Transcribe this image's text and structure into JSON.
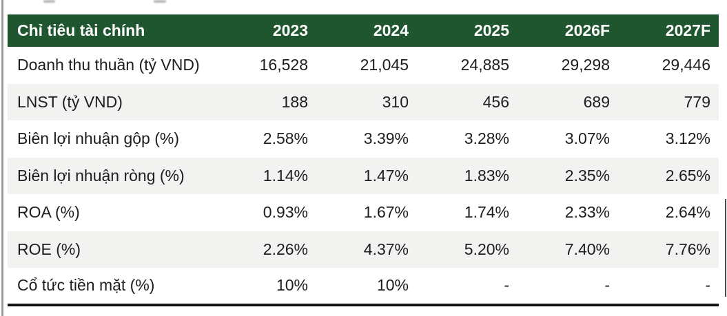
{
  "chart_data": {
    "type": "table",
    "title": "Chỉ tiêu tài chính",
    "columns": [
      "Chỉ tiêu tài chính",
      "2023",
      "2024",
      "2025",
      "2026F",
      "2027F"
    ],
    "rows": [
      {
        "label": "Doanh thu thuần (tỷ VND)",
        "values": [
          "16,528",
          "21,045",
          "24,885",
          "29,298",
          "29,446"
        ]
      },
      {
        "label": "LNST (tỷ VND)",
        "values": [
          "188",
          "310",
          "456",
          "689",
          "779"
        ]
      },
      {
        "label": "Biên lợi nhuận gộp (%)",
        "values": [
          "2.58%",
          "3.39%",
          "3.28%",
          "3.07%",
          "3.12%"
        ]
      },
      {
        "label": "Biên lợi nhuận ròng (%)",
        "values": [
          "1.14%",
          "1.47%",
          "1.83%",
          "2.35%",
          "2.65%"
        ]
      },
      {
        "label": "ROA (%)",
        "values": [
          "0.93%",
          "1.67%",
          "1.74%",
          "2.33%",
          "2.64%"
        ]
      },
      {
        "label": "ROE (%)",
        "values": [
          "2.26%",
          "4.37%",
          "5.20%",
          "7.40%",
          "7.76%"
        ]
      },
      {
        "label": "Cổ tức tiền mặt (%)",
        "values": [
          "10%",
          "10%",
          "-",
          "-",
          "-"
        ]
      }
    ],
    "layout": {
      "striped_rows": "even rows shaded",
      "header_alignment": "first column left, year columns right",
      "value_alignment": "right"
    }
  },
  "colors": {
    "header_bg": "#20562f",
    "header_text": "#ffffff",
    "stripe_bg": "#f2f2f1",
    "body_text": "#1d1d1d",
    "bottom_rule": "#121212"
  }
}
